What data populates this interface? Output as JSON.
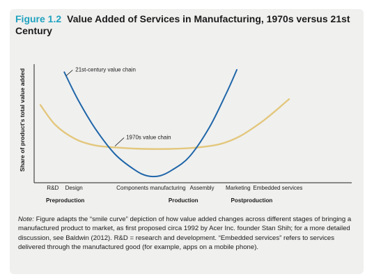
{
  "figure": {
    "number": "Figure 1.2",
    "title": "Value Added of Services in Manufacturing, 1970s versus 21st Century"
  },
  "colors": {
    "accent": "#1ea2bf",
    "series_21st": "#1f66a8",
    "series_1970s": "#e3c77c",
    "panel_background": "#f0f0ef"
  },
  "chart_data": {
    "type": "line",
    "ylabel": "Share of product's total value added",
    "xlabel": "",
    "ylim": [
      0,
      1
    ],
    "xlim": [
      0,
      1
    ],
    "grid": false,
    "legend": "inline annotations",
    "x_tick_labels": [
      {
        "label": "R&D",
        "x": 0.05
      },
      {
        "label": "Design",
        "x": 0.135
      },
      {
        "label": "Components manufacturing",
        "x": 0.445
      },
      {
        "label": "Assembly",
        "x": 0.65
      },
      {
        "label": "Marketing",
        "x": 0.795
      },
      {
        "label": "Embedded services",
        "x": 0.955
      }
    ],
    "stage_labels": [
      {
        "label": "Preproduction",
        "x": 0.1
      },
      {
        "label": "Production",
        "x": 0.575
      },
      {
        "label": "Postproduction",
        "x": 0.85
      }
    ],
    "series": [
      {
        "name": "21st-century value chain",
        "x": [
          0.096,
          0.15,
          0.22,
          0.3,
          0.38,
          0.43,
          0.48,
          0.53,
          0.6,
          0.68,
          0.75,
          0.79
        ],
        "y": [
          0.92,
          0.69,
          0.44,
          0.22,
          0.085,
          0.035,
          0.035,
          0.085,
          0.2,
          0.45,
          0.75,
          0.94
        ]
      },
      {
        "name": "1970s value chain",
        "x": [
          0.0,
          0.06,
          0.14,
          0.22,
          0.32,
          0.42,
          0.52,
          0.62,
          0.72,
          0.8,
          0.88,
          0.94,
          1.0
        ],
        "y": [
          0.64,
          0.47,
          0.35,
          0.295,
          0.275,
          0.265,
          0.265,
          0.275,
          0.305,
          0.37,
          0.48,
          0.58,
          0.69
        ]
      }
    ]
  },
  "note": {
    "label": "Note:",
    "text": " Figure adapts the “smile curve” depiction of how value added changes across different stages of bringing a manufactured product to market, as first proposed circa 1992 by Acer Inc. founder Stan Shih; for a more detailed discussion, see Baldwin (2012). R&D = research and development. “Embedded services” refers to services delivered through the manufactured good (for example, apps on a mobile phone)."
  }
}
